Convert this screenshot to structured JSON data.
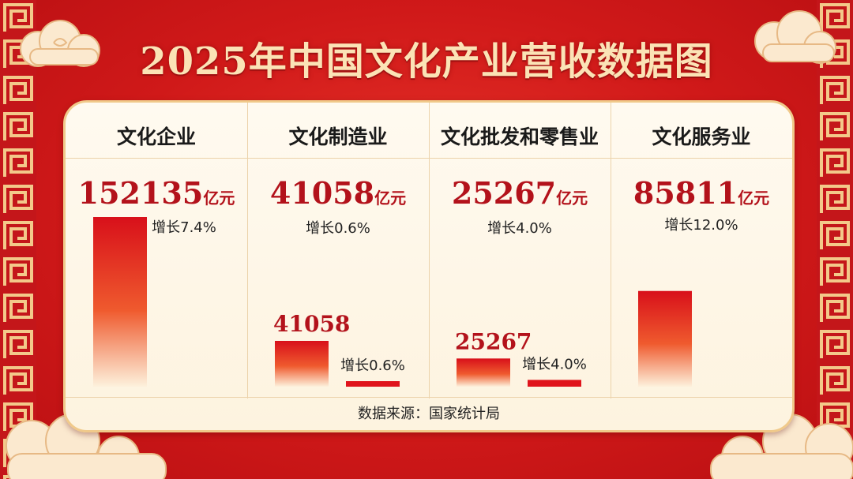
{
  "chart_data": {
    "type": "bar",
    "title": "2025年中国文化产业营收数据图",
    "categories": [
      "文化企业",
      "文化制造业",
      "文化批发和零售业",
      "文化服务业"
    ],
    "values": [
      152135,
      41058,
      25267,
      85811
    ],
    "unit": "亿元",
    "growth_labels": [
      "增长7.4%",
      "增长0.6%",
      "增长4.0%",
      "增长12.0%"
    ],
    "growth_rates": [
      7.4,
      0.6,
      4.0,
      12.0
    ],
    "secondary_bars": [
      {
        "category": "文化制造业",
        "label": "增长0.6%"
      },
      {
        "category": "文化批发和零售业",
        "label": "增长4.0%"
      }
    ],
    "source": "数据来源：国家统计局",
    "colors": {
      "bar_top": "#d8101a",
      "bar_bottom": "#fdf1dc",
      "value_text": "#b3121b",
      "background": "#d11a1a"
    }
  }
}
